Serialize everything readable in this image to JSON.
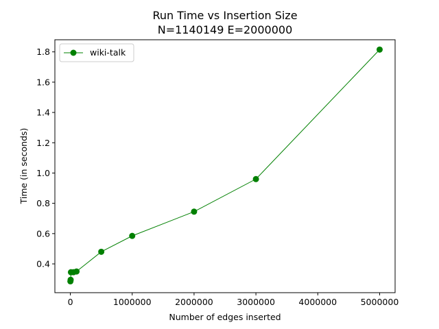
{
  "chart_data": {
    "type": "line",
    "title_line1": "Run Time vs Insertion Size",
    "title_line2": "N=1140149 E=2000000",
    "xlabel": "Number of edges inserted",
    "ylabel": "Time (in seconds)",
    "xlim": [
      -250000,
      5250000
    ],
    "ylim": [
      0.21,
      1.88
    ],
    "x_ticks": [
      0,
      1000000,
      2000000,
      3000000,
      4000000,
      5000000
    ],
    "x_tick_labels": [
      "0",
      "1000000",
      "2000000",
      "3000000",
      "4000000",
      "5000000"
    ],
    "y_ticks": [
      0.4,
      0.6,
      0.8,
      1.0,
      1.2,
      1.4,
      1.6,
      1.8
    ],
    "y_tick_labels": [
      "0.4",
      "0.6",
      "0.8",
      "1.0",
      "1.2",
      "1.4",
      "1.6",
      "1.8"
    ],
    "grid": false,
    "legend_position": "top-left",
    "series": [
      {
        "name": "wiki-talk",
        "color": "#008000",
        "marker": "circle",
        "x": [
          1000,
          5000,
          10000,
          50000,
          100000,
          500000,
          1000000,
          2000000,
          3000000,
          5000000
        ],
        "y": [
          0.285,
          0.295,
          0.345,
          0.345,
          0.35,
          0.48,
          0.585,
          0.745,
          0.96,
          1.815
        ]
      }
    ]
  }
}
